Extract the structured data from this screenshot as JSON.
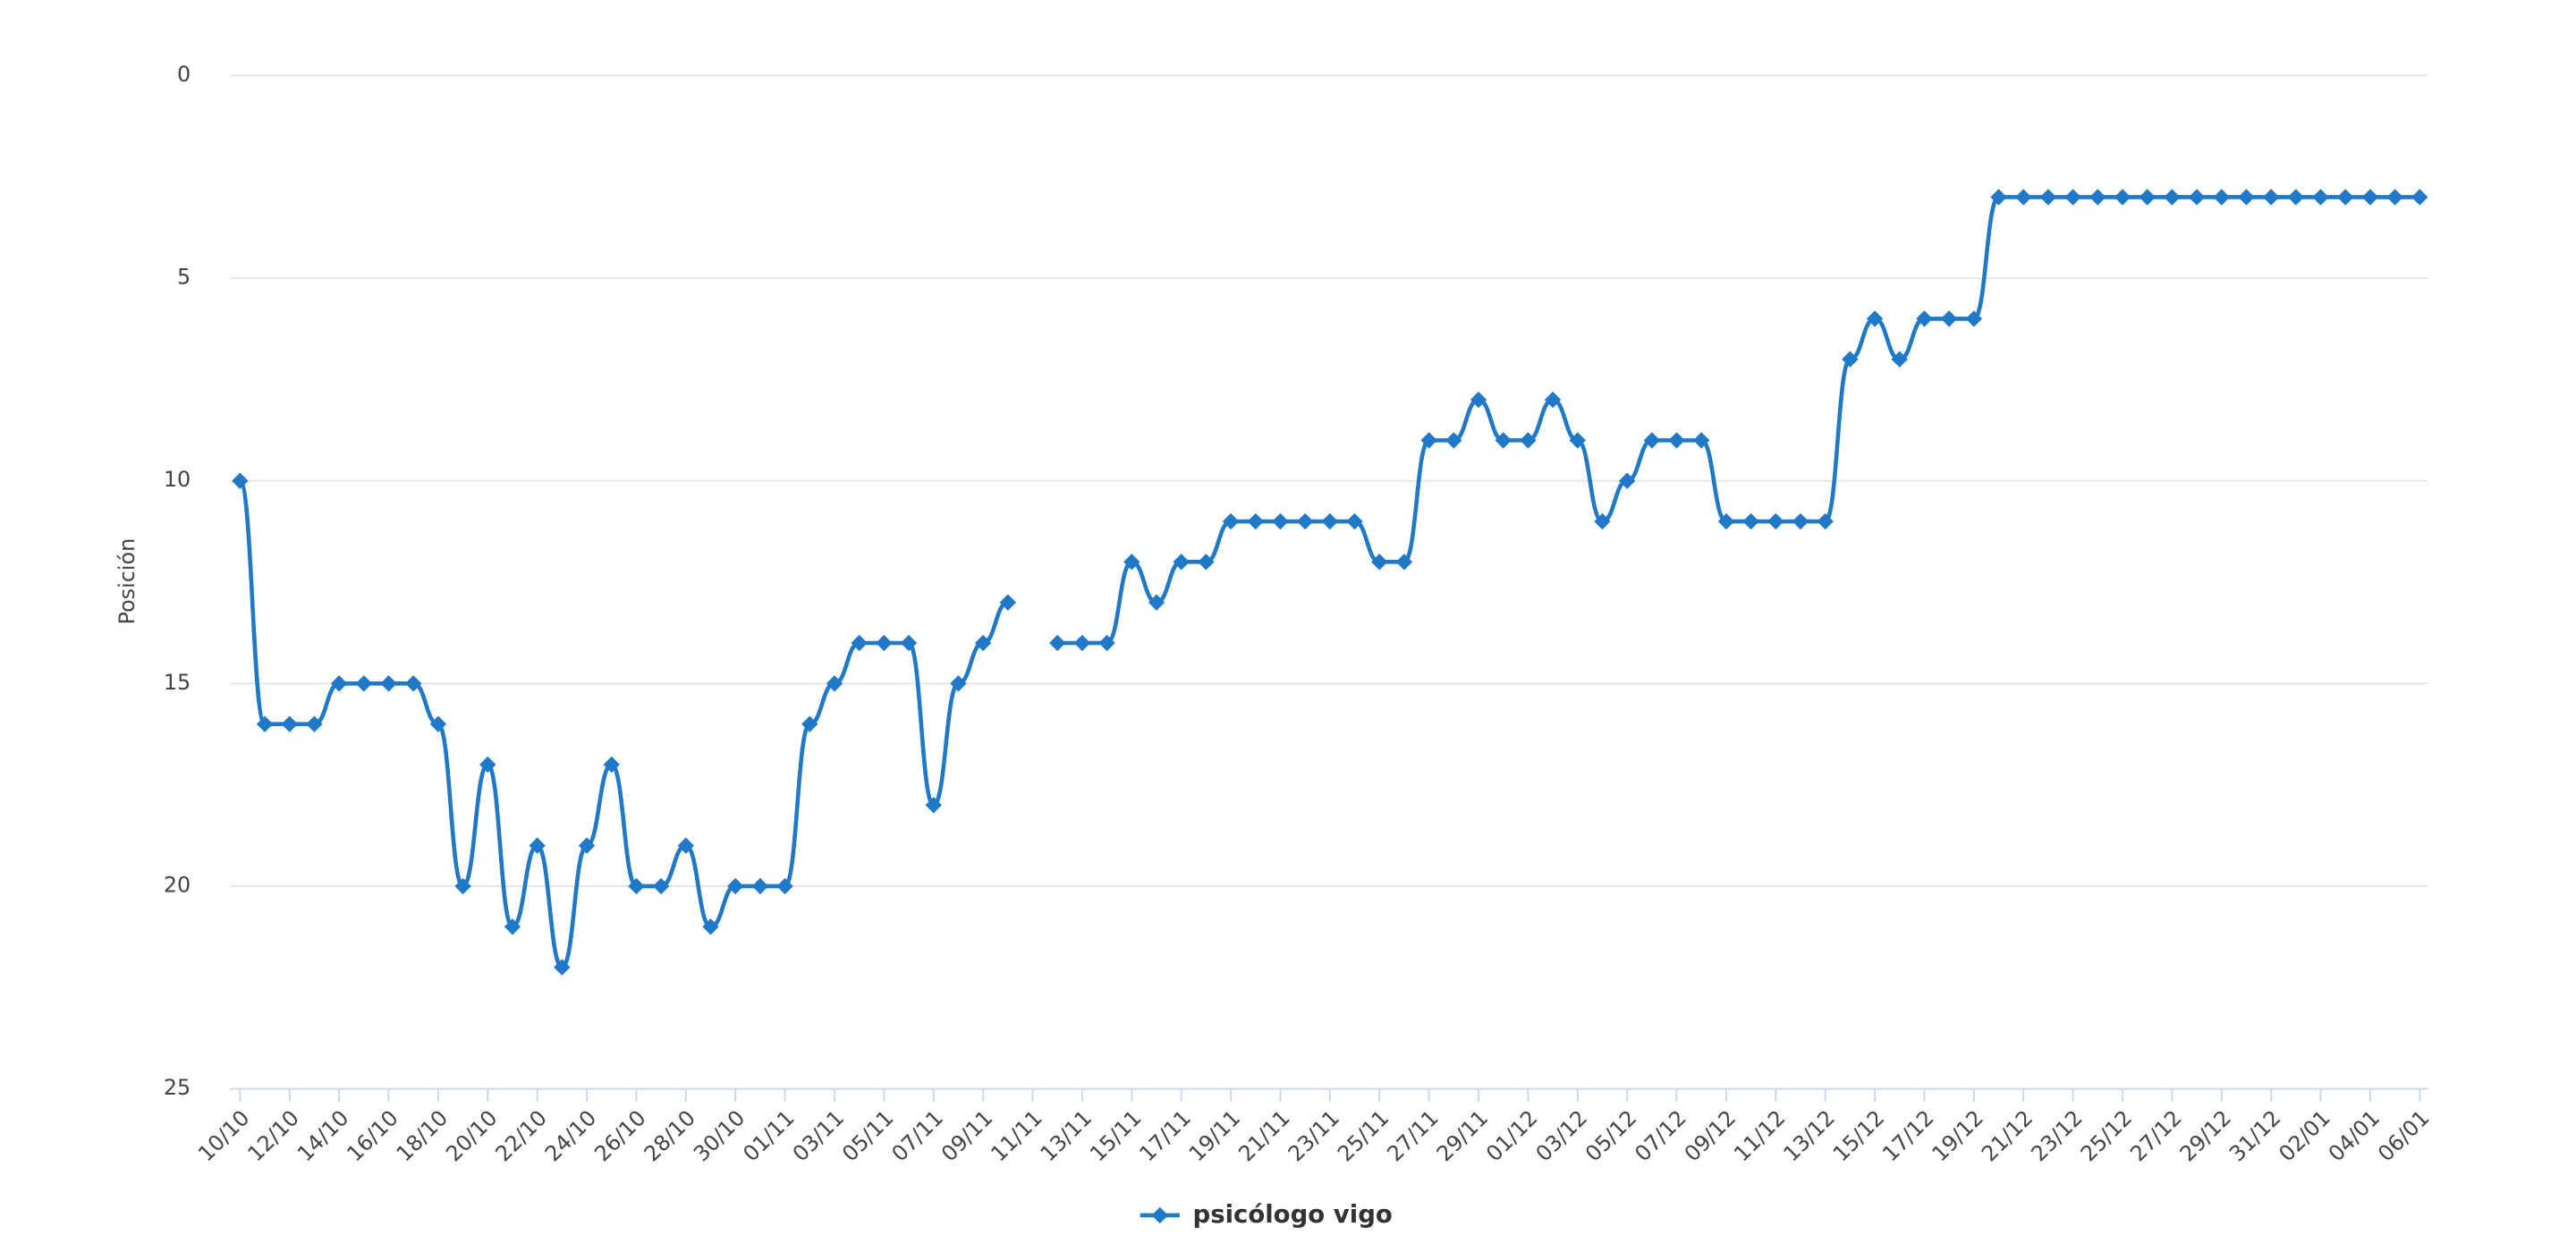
{
  "chart_data": {
    "type": "line",
    "y_title": "Posición",
    "categories": [
      "10/10",
      null,
      "12/10",
      null,
      "14/10",
      null,
      "16/10",
      null,
      "18/10",
      null,
      "20/10",
      null,
      "22/10",
      null,
      "24/10",
      null,
      "26/10",
      null,
      "28/10",
      null,
      "30/10",
      null,
      "01/11",
      null,
      "03/11",
      null,
      "05/11",
      null,
      "07/11",
      null,
      "09/11",
      null,
      "11/11",
      null,
      "13/11",
      null,
      "15/11",
      null,
      "17/11",
      null,
      "19/11",
      null,
      "21/11",
      null,
      "23/11",
      null,
      "25/11",
      null,
      "27/11",
      null,
      "29/11",
      null,
      "01/12",
      null,
      "03/12",
      null,
      "05/12",
      null,
      "07/12",
      null,
      "09/12",
      null,
      "11/12",
      null,
      "13/12",
      null,
      "15/12",
      null,
      "17/12",
      null,
      "19/12",
      null,
      "21/12",
      null,
      "23/12",
      null,
      "25/12",
      null,
      "27/12",
      null,
      "29/12",
      null,
      "31/12",
      null,
      "02/01",
      null,
      "04/01",
      null,
      "06/01"
    ],
    "series": [
      {
        "name": "psicólogo vigo",
        "color": "#1f78c8",
        "values": [
          10,
          16,
          16,
          16,
          15,
          15,
          15,
          15,
          16,
          20,
          17,
          21,
          19,
          22,
          19,
          17,
          20,
          20,
          19,
          21,
          20,
          20,
          20,
          16,
          15,
          14,
          14,
          14,
          18,
          15,
          14,
          13,
          null,
          14,
          14,
          14,
          12,
          13,
          12,
          12,
          11,
          11,
          11,
          11,
          11,
          11,
          12,
          12,
          9,
          9,
          8,
          9,
          9,
          8,
          9,
          11,
          10,
          9,
          9,
          9,
          11,
          11,
          11,
          11,
          11,
          7,
          6,
          7,
          6,
          6,
          6,
          3,
          3,
          3,
          3,
          3,
          3,
          3,
          3,
          3,
          3,
          3,
          3,
          3,
          3,
          3,
          3,
          3,
          3
        ]
      }
    ],
    "ylim": [
      0,
      25
    ],
    "y_reversed": true,
    "yticks": [
      0,
      5,
      10,
      15,
      20,
      25
    ],
    "grid": true,
    "legend": "bottom"
  }
}
